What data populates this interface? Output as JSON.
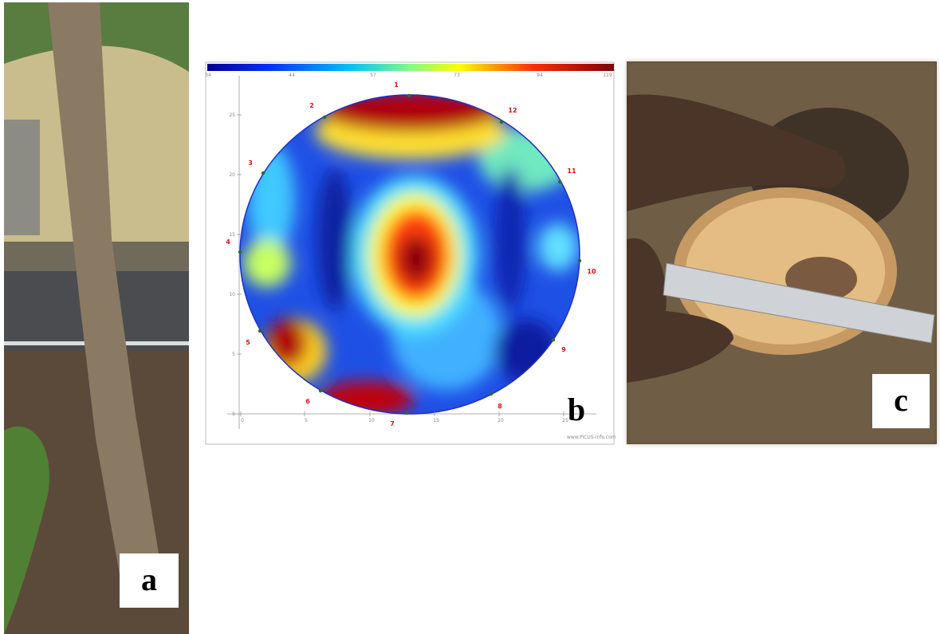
{
  "panels": [
    {
      "label": "a"
    },
    {
      "label": "b",
      "colorbar_ticks": [
        "34",
        "44",
        "57",
        "73",
        "94",
        "119"
      ],
      "sensors": [
        "1",
        "2",
        "3",
        "4",
        "5",
        "6",
        "7",
        "8",
        "9",
        "10",
        "11",
        "12"
      ],
      "x_ticks": [
        "0",
        "5",
        "10",
        "15",
        "20",
        "25"
      ],
      "y_ticks": [
        "0",
        "5",
        "10",
        "15",
        "20",
        "25"
      ],
      "watermark": "www.PiCUS-info.com"
    },
    {
      "label": "c"
    }
  ]
}
